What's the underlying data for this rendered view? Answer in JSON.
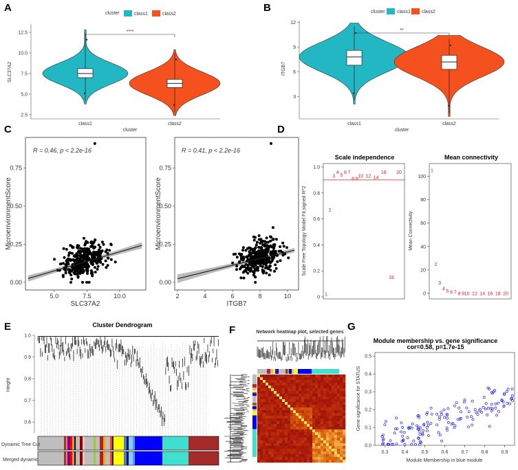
{
  "panels": {
    "A": "A",
    "B": "B",
    "C": "C",
    "D": "D",
    "E": "E",
    "F": "F",
    "G": "G"
  },
  "colors": {
    "class1": "#22b7c2",
    "class2": "#f4511e",
    "blue_module": "#0000ff",
    "turquoise": "#40e0d0",
    "red_fit": "#e02020",
    "brown": "#a52a2a",
    "yellow": "#ffff00",
    "grey": "#bebebe"
  },
  "chart_data": [
    {
      "id": "A",
      "type": "violin",
      "legend_title": "cluster",
      "legend_items": [
        "class1",
        "class2"
      ],
      "categories": [
        "class1",
        "class2"
      ],
      "xlabel": "cluster",
      "ylabel": "SLC37A2",
      "ylim": [
        2,
        13.5
      ],
      "yticks": [
        "2.5",
        "5.0",
        "7.5",
        "10.0",
        "12.5"
      ],
      "significance": "****",
      "boxes": [
        {
          "q1": 7.0,
          "median": 7.5,
          "q3": 8.1,
          "min": 4.2,
          "max": 12.4
        },
        {
          "q1": 5.8,
          "median": 6.3,
          "q3": 6.8,
          "min": 2.8,
          "max": 10.0
        }
      ]
    },
    {
      "id": "B",
      "type": "violin",
      "legend_title": "cluster",
      "legend_items": [
        "class1",
        "class2"
      ],
      "categories": [
        "class1",
        "class2"
      ],
      "xlabel": "cluster",
      "ylabel": "ITGB7",
      "ylim": [
        0.3,
        12.2
      ],
      "yticks": [
        "3",
        "6",
        "9",
        "12"
      ],
      "significance": "**",
      "boxes": [
        {
          "q1": 6.8,
          "median": 7.8,
          "q3": 8.6,
          "min": 2.5,
          "max": 11.5
        },
        {
          "q1": 6.3,
          "median": 7.2,
          "q3": 8.0,
          "min": 1.0,
          "max": 10.0
        }
      ]
    },
    {
      "id": "C1",
      "type": "scatter",
      "xlabel": "SLC37A2",
      "ylabel": "MicroenvironmentScore",
      "xlim": [
        2.8,
        12.0
      ],
      "ylim": [
        -0.05,
        0.95
      ],
      "xticks": [
        "5.0",
        "7.5",
        "10.0"
      ],
      "yticks": [
        "0.00",
        "0.25",
        "0.50",
        "0.75"
      ],
      "annotation": "R = 0.46, p < 2.2e-16",
      "fit": {
        "slope": 0.025,
        "intercept": -0.05
      },
      "n_points": 340
    },
    {
      "id": "C2",
      "type": "scatter",
      "xlabel": "ITGB7",
      "ylabel": "MicroenvironmentScore",
      "xlim": [
        1.8,
        10.8
      ],
      "ylim": [
        -0.05,
        0.95
      ],
      "xticks": [
        "2",
        "4",
        "6",
        "8",
        "10"
      ],
      "yticks": [
        "0.00",
        "0.25",
        "0.50",
        "0.75"
      ],
      "annotation": "R = 0.41, p < 2.2e-16",
      "fit": {
        "slope": 0.022,
        "intercept": -0.02
      },
      "n_points": 340
    },
    {
      "id": "D1",
      "type": "scatter",
      "title": "Scale independence",
      "xlabel": "",
      "ylabel": "Scale Free Topology Model Fit,signed R^2",
      "ylim": [
        0,
        1
      ],
      "yticks": [
        "0",
        "0.2",
        "0.4",
        "0.6",
        "0.8",
        "1.0"
      ],
      "threshold": 0.9,
      "x": [
        1,
        2,
        3,
        4,
        5,
        6,
        7,
        8,
        9,
        10,
        12,
        14,
        16,
        18,
        20
      ],
      "y": [
        0.02,
        0.67,
        0.93,
        0.96,
        0.94,
        0.96,
        0.96,
        0.91,
        0.91,
        0.93,
        0.93,
        0.92,
        0.96,
        0.15,
        0.96
      ]
    },
    {
      "id": "D2",
      "type": "scatter",
      "title": "Mean connectivity",
      "xlabel": "",
      "ylabel": "Mean Connectivity",
      "ylim": [
        -3,
        108
      ],
      "yticks": [
        "0",
        "20",
        "40",
        "60",
        "80",
        "100"
      ],
      "x": [
        1,
        2,
        3,
        4,
        5,
        6,
        7,
        8,
        9,
        10,
        12,
        14,
        16,
        18,
        20
      ],
      "y": [
        105,
        25,
        9,
        4,
        2,
        1,
        1,
        0,
        0,
        0,
        0,
        0,
        0,
        0,
        0
      ]
    },
    {
      "id": "E",
      "type": "dendrogram",
      "title": "Cluster Dendrogram",
      "ylabel": "Height",
      "ylim": [
        0.55,
        1.0
      ],
      "yticks": [
        "0.6",
        "0.7",
        "0.8",
        "0.9",
        "1.0"
      ],
      "rows": [
        "Dynamic Tree Cut",
        "Merged dynamic"
      ],
      "modules": [
        "grey",
        "yellow",
        "blue",
        "turquoise",
        "brown"
      ]
    },
    {
      "id": "F",
      "type": "heatmap",
      "title": "Network heatmap plot, selected genes"
    },
    {
      "id": "G",
      "type": "scatter",
      "title": "Module membership vs. gene significance",
      "subtitle": "cor=0.58, p=1.7e-15",
      "xlabel": "Module Membership in blue module",
      "ylabel": "Gene significance for STATUS",
      "xlim": [
        0.25,
        0.95
      ],
      "ylim": [
        0,
        0.52
      ],
      "xticks": [
        "0.3",
        "0.4",
        "0.5",
        "0.6",
        "0.7",
        "0.8",
        "0.9"
      ],
      "yticks": [
        "0.0",
        "0.1",
        "0.2",
        "0.3",
        "0.4",
        "0.5"
      ],
      "n_points": 150
    }
  ]
}
